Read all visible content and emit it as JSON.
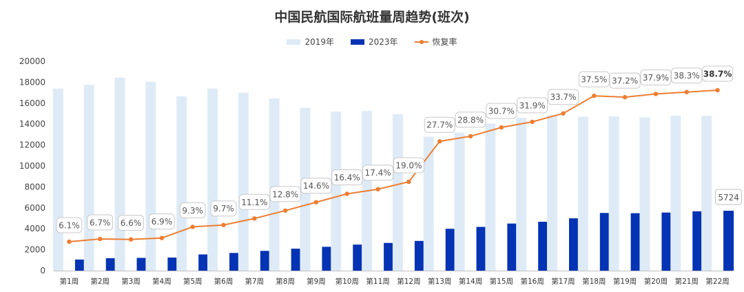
{
  "chart_data": {
    "type": "bar",
    "title": "中国民航国际航班量周趋势(班次)",
    "categories": [
      "第1周",
      "第2周",
      "第3周",
      "第4周",
      "第5周",
      "第6周",
      "第7周",
      "第8周",
      "第9周",
      "第10周",
      "第11周",
      "第12周",
      "第13周",
      "第14周",
      "第15周",
      "第16周",
      "第17周",
      "第18周",
      "第19周",
      "第20周",
      "第21周",
      "第22周"
    ],
    "series": [
      {
        "name": "2019年",
        "kind": "bar",
        "color": "#DEEBF7",
        "values": [
          17400,
          17750,
          18450,
          18050,
          16650,
          17400,
          17000,
          16450,
          15550,
          15200,
          15250,
          14950,
          12800,
          13200,
          14050,
          14600,
          14850,
          14700,
          14750,
          14650,
          14800,
          14800
        ]
      },
      {
        "name": "2023年",
        "kind": "bar",
        "color": "#0433B4",
        "values": [
          1060,
          1190,
          1220,
          1250,
          1550,
          1690,
          1890,
          2100,
          2280,
          2490,
          2650,
          2840,
          4000,
          4180,
          4500,
          4670,
          5000,
          5510,
          5490,
          5550,
          5670,
          5724
        ]
      },
      {
        "name": "恢复率",
        "kind": "line",
        "color": "#ED7D31",
        "values": [
          6.1,
          6.7,
          6.6,
          6.9,
          9.3,
          9.7,
          11.1,
          12.8,
          14.6,
          16.4,
          17.4,
          19.0,
          27.7,
          28.8,
          30.7,
          31.9,
          33.7,
          37.5,
          37.2,
          37.9,
          38.3,
          38.7
        ],
        "labels": [
          "6.1%",
          "6.7%",
          "6.6%",
          "6.9%",
          "9.3%",
          "9.7%",
          "11.1%",
          "12.8%",
          "14.6%",
          "16.4%",
          "17.4%",
          "19.0%",
          "27.7%",
          "28.8%",
          "30.7%",
          "31.9%",
          "33.7%",
          "37.5%",
          "37.2%",
          "37.9%",
          "38.3%",
          "38.7%"
        ]
      }
    ],
    "y_ticks": [
      "0",
      "2000",
      "4000",
      "6000",
      "8000",
      "10000",
      "12000",
      "14000",
      "16000",
      "18000",
      "20000"
    ],
    "ylim": [
      0,
      20000
    ],
    "last_bar_label": "5724",
    "legend_position": "top-center",
    "grid": false
  }
}
